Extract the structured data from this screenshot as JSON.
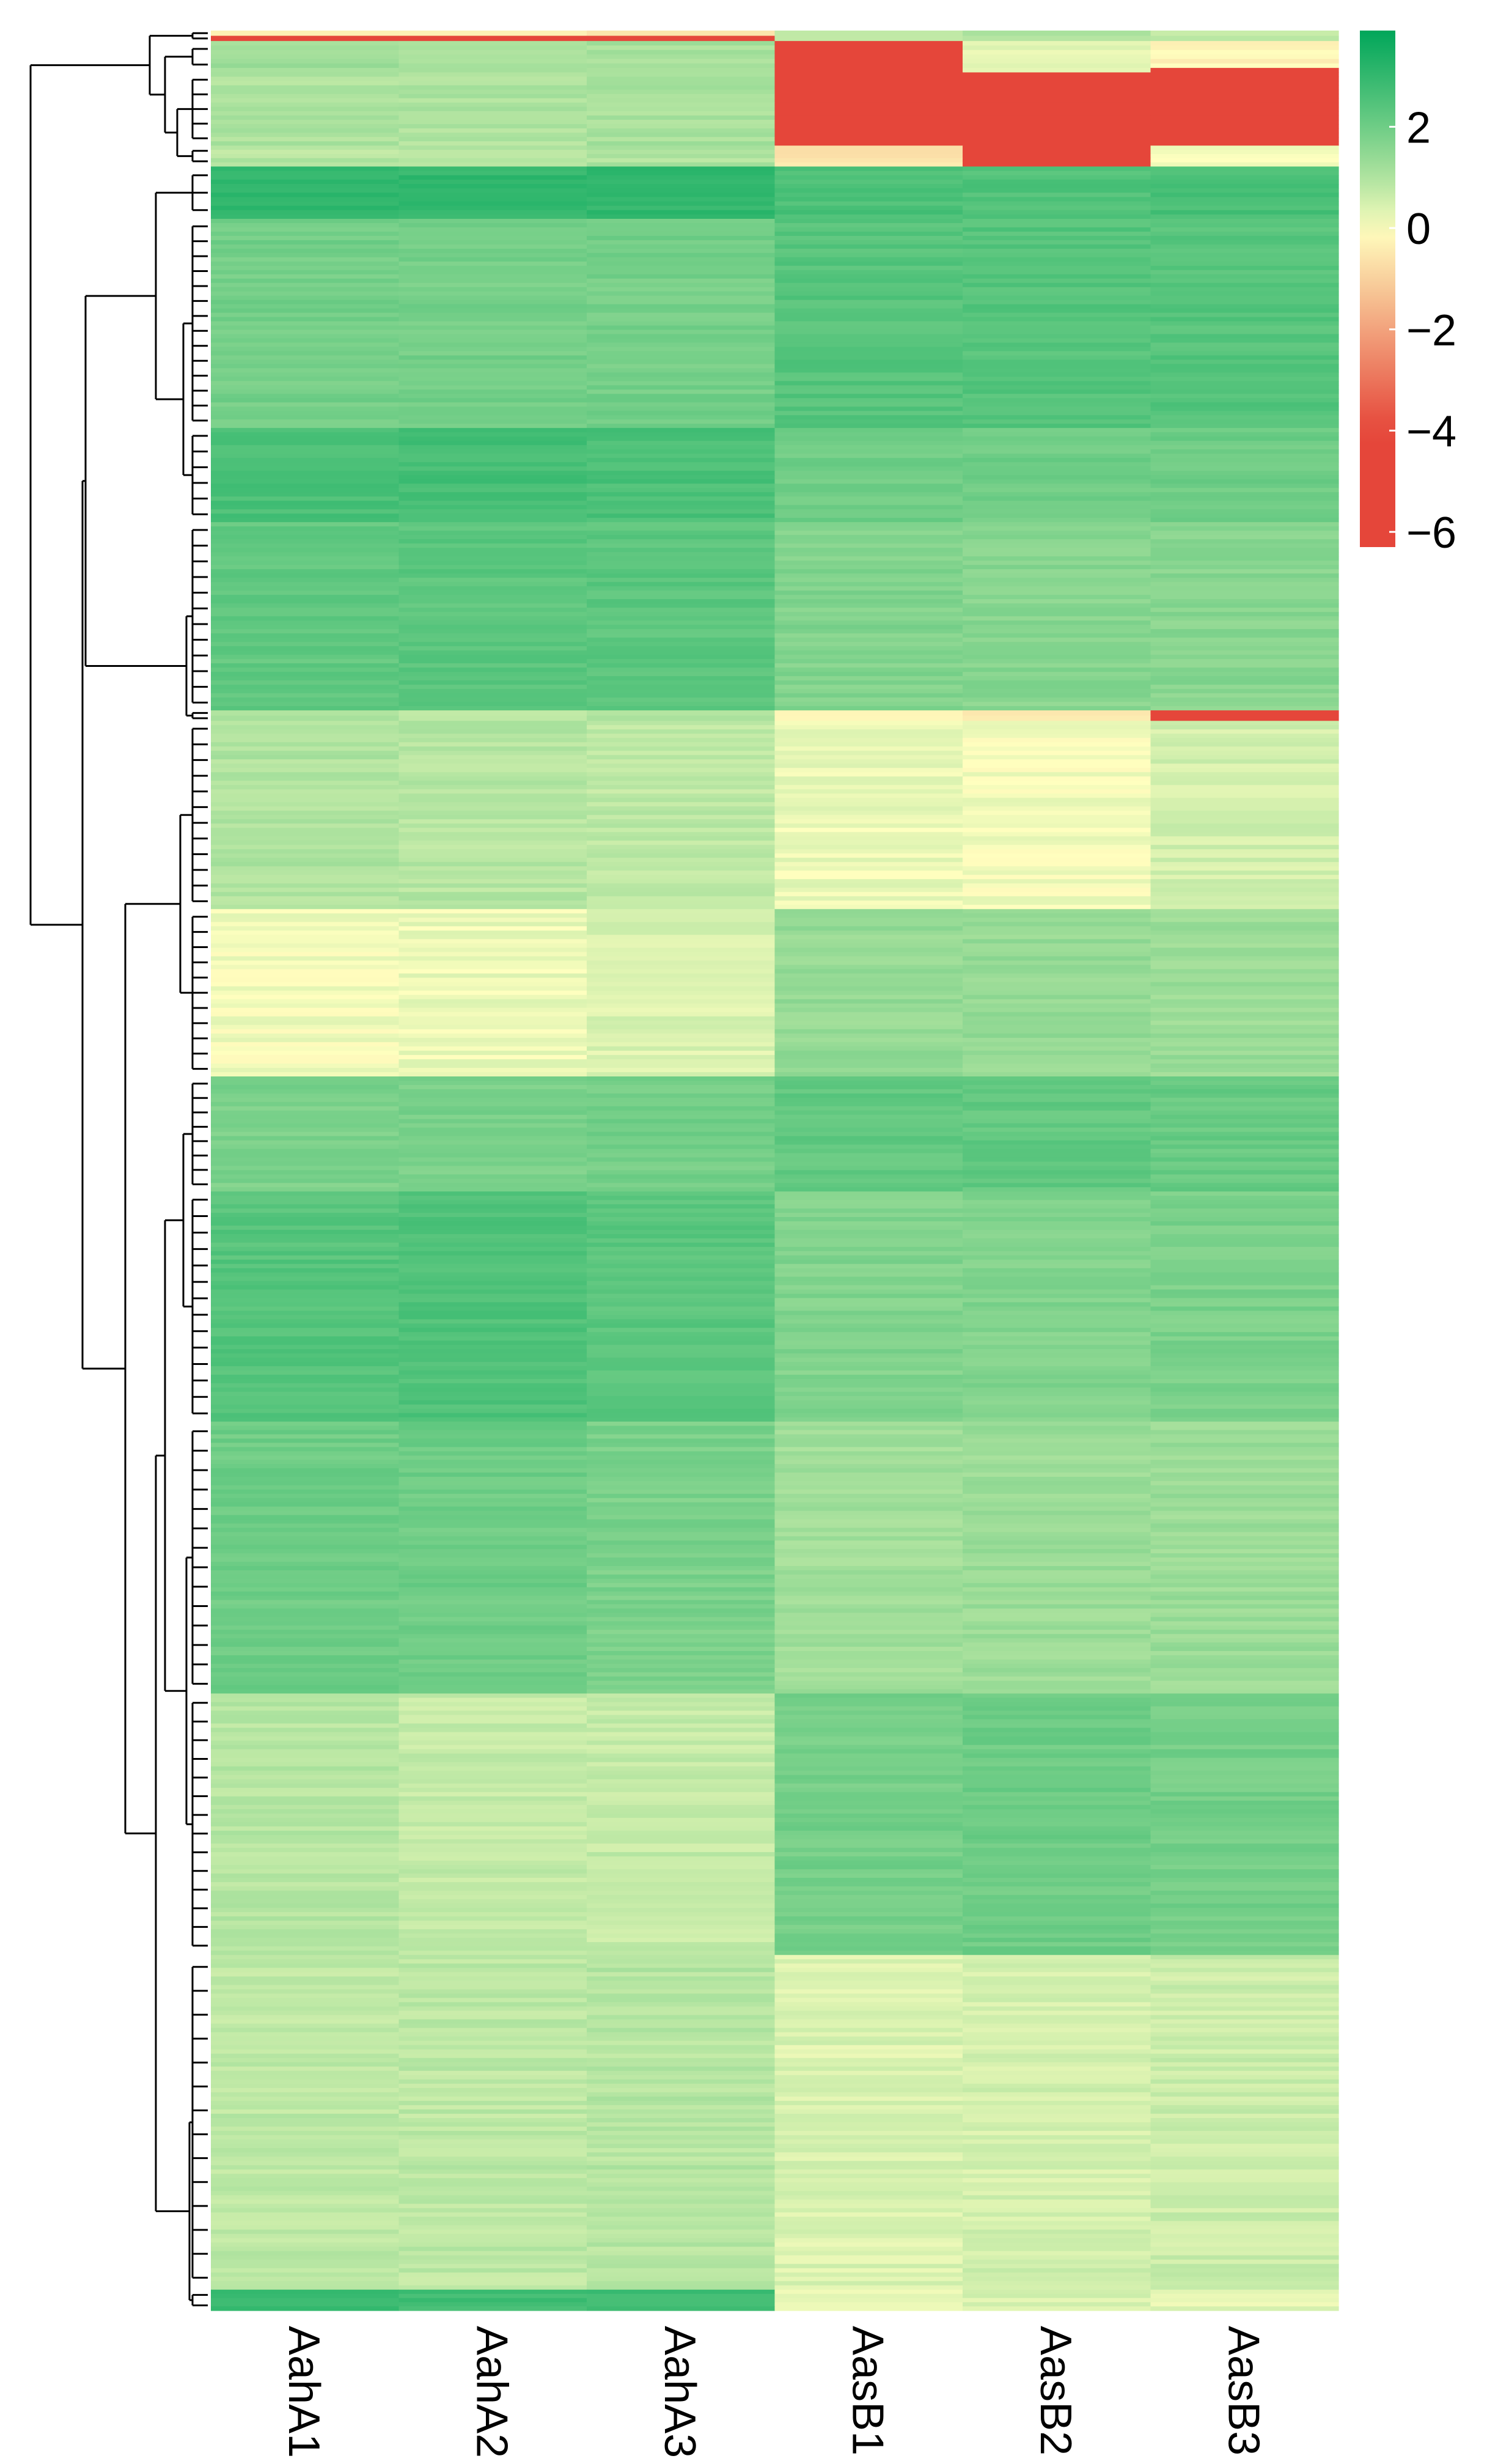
{
  "chart_data": {
    "type": "heatmap",
    "title": "",
    "columns": [
      "AahA1",
      "AahA2",
      "AahA3",
      "AasB1",
      "AasB2",
      "AasB3"
    ],
    "row_clusters": [
      {
        "id": "c1",
        "rows": 2,
        "values": [
          -0.5,
          -0.5,
          -0.4,
          0.8,
          0.9,
          0.8
        ],
        "detail": [
          -5.5,
          -5.5,
          -5.5,
          0.8,
          0.9,
          0.8
        ]
      },
      {
        "id": "c2",
        "rows": 6,
        "values": [
          1.2,
          1.2,
          1.1,
          -6.0,
          0.3,
          -0.2
        ],
        "detail": [
          1.2,
          1.2,
          1.1,
          -6.0,
          0.3,
          -6.0
        ]
      },
      {
        "id": "c3",
        "rows": 14,
        "values": [
          1.0,
          1.0,
          1.1,
          -6.0,
          -6.0,
          -6.0
        ]
      },
      {
        "id": "c4",
        "rows": 4,
        "values": [
          0.9,
          0.9,
          1.0,
          -0.5,
          -6.0,
          0.2
        ]
      },
      {
        "id": "c5",
        "rows": 10,
        "values": [
          3.0,
          3.0,
          3.0,
          2.6,
          2.5,
          2.6
        ]
      },
      {
        "id": "c6",
        "rows": 40,
        "values": [
          1.9,
          1.9,
          1.9,
          2.4,
          2.4,
          2.4
        ]
      },
      {
        "id": "c7",
        "rows": 18,
        "values": [
          2.6,
          2.7,
          2.6,
          2.0,
          2.0,
          2.0
        ]
      },
      {
        "id": "c8",
        "rows": 36,
        "values": [
          2.2,
          2.3,
          2.3,
          1.7,
          1.6,
          1.6
        ]
      },
      {
        "id": "c9",
        "rows": 2,
        "values": [
          1.0,
          0.9,
          0.9,
          0.0,
          -0.3,
          -6.0
        ]
      },
      {
        "id": "c10",
        "rows": 36,
        "values": [
          1.0,
          0.9,
          0.8,
          0.2,
          0.1,
          0.5
        ]
      },
      {
        "id": "c11",
        "rows": 32,
        "values": [
          0.1,
          0.2,
          0.4,
          1.4,
          1.4,
          1.3
        ]
      },
      {
        "id": "c12",
        "rows": 22,
        "values": [
          1.8,
          1.8,
          1.9,
          2.2,
          2.2,
          2.1
        ]
      },
      {
        "id": "c13",
        "rows": 44,
        "values": [
          2.4,
          2.5,
          2.3,
          1.7,
          1.7,
          1.8
        ]
      },
      {
        "id": "c14",
        "rows": 52,
        "values": [
          2.0,
          2.0,
          1.8,
          1.2,
          1.3,
          1.3
        ]
      },
      {
        "id": "c15",
        "rows": 50,
        "values": [
          0.9,
          0.7,
          0.7,
          1.9,
          2.0,
          1.9
        ]
      },
      {
        "id": "c16",
        "rows": 64,
        "values": [
          0.8,
          0.8,
          0.9,
          0.4,
          0.5,
          0.6
        ]
      },
      {
        "id": "c17",
        "rows": 4,
        "values": [
          2.8,
          2.8,
          2.8,
          0.2,
          0.4,
          0.3
        ]
      }
    ],
    "legend": {
      "ticks": [
        2,
        0,
        -2,
        -4,
        -6
      ],
      "tick_labels": [
        "2",
        "0",
        "−2",
        "−4",
        "−6"
      ],
      "range": [
        -6.3,
        3.9
      ],
      "colors": {
        "low": "#e5463a",
        "mid": "#ffffbf",
        "high": "#00a65a"
      },
      "position": "top-right"
    },
    "dendrogram": "rows"
  }
}
